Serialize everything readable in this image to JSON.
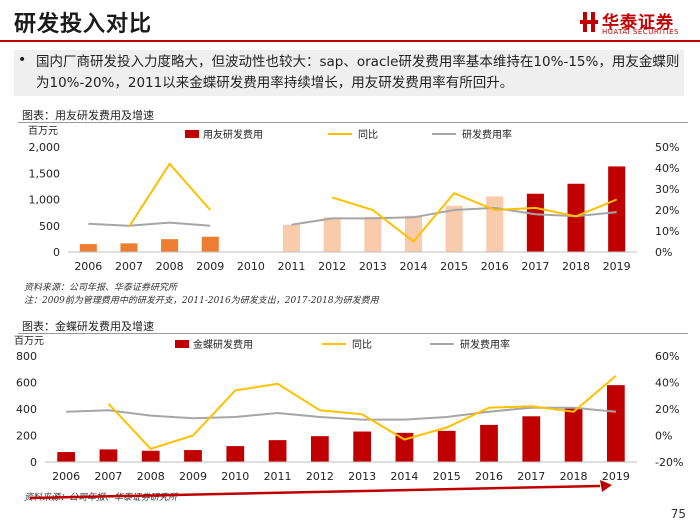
{
  "header": {
    "title": "研发投入对比",
    "logo_cn": "华泰证券",
    "logo_en": "HUATAI SECURITIES",
    "brand_color": "#c00000"
  },
  "summary": {
    "bullet": "•",
    "text": "国内厂商研发投入力度略大，但波动性也较大：sap、oracle研发费用率基本维持在10%-15%，用友金蝶则为10%-20%，2011以来金蝶研发费用率持续增长，用友研发费用率有所回升。"
  },
  "chart1": {
    "label": "图表：用友研发费用及增速",
    "source": "资料来源：公司年报、华泰证券研究所",
    "note": "注：2009前为管理费用中的研发开支，2011-2016为研发支出，2017-2018为研发费用"
  },
  "chart2": {
    "label": "图表：金蝶研发费用及增速",
    "source": "资料来源：公司年报、华泰证券研究所"
  },
  "page_number": "75",
  "chart_data": [
    {
      "type": "bar",
      "title": "用友研发费用及增速",
      "unit_label": "百万元",
      "categories": [
        "2006",
        "2007",
        "2008",
        "2009",
        "2010",
        "2011",
        "2012",
        "2013",
        "2014",
        "2015",
        "2016",
        "2017",
        "2018",
        "2019"
      ],
      "series": [
        {
          "name": "用友研发费用",
          "axis": "left",
          "kind": "bar",
          "values": [
            150,
            165,
            245,
            290,
            null,
            520,
            660,
            670,
            690,
            880,
            1060,
            1110,
            1300,
            1630
          ],
          "colors": [
            "#ed7d31",
            "#ed7d31",
            "#ed7d31",
            "#ed7d31",
            "#ed7d31",
            "#f8cbad",
            "#f8cbad",
            "#f8cbad",
            "#f8cbad",
            "#f8cbad",
            "#f8cbad",
            "#c00000",
            "#c00000",
            "#c00000"
          ]
        },
        {
          "name": "同比",
          "axis": "right",
          "kind": "line",
          "color": "#ffc000",
          "segments": [
            {
              "from": 1,
              "values": [
                12,
                42,
                20
              ]
            },
            {
              "from": 6,
              "values": [
                26,
                20,
                5,
                28,
                20,
                21,
                17,
                25
              ]
            }
          ]
        },
        {
          "name": "研发费用率",
          "axis": "right",
          "kind": "line",
          "color": "#a6a6a6",
          "segments": [
            {
              "from": 0,
              "values": [
                13.5,
                12.5,
                14,
                12.5
              ]
            },
            {
              "from": 5,
              "values": [
                13,
                16,
                16,
                16.5,
                20,
                21,
                18,
                17,
                19
              ]
            }
          ]
        }
      ],
      "ylim_left": [
        0,
        2000
      ],
      "yticks_left": [
        "0",
        "500",
        "1,000",
        "1,500",
        "2,000"
      ],
      "ylim_right": [
        0,
        50
      ],
      "yticks_right": [
        "0%",
        "10%",
        "20%",
        "30%",
        "40%",
        "50%"
      ]
    },
    {
      "type": "bar",
      "title": "金蝶研发费用及增速",
      "unit_label": "百万元",
      "categories": [
        "2006",
        "2007",
        "2008",
        "2009",
        "2010",
        "2011",
        "2012",
        "2013",
        "2014",
        "2015",
        "2016",
        "2017",
        "2018",
        "2019"
      ],
      "series": [
        {
          "name": "金蝶研发费用",
          "axis": "left",
          "kind": "bar",
          "color": "#c00000",
          "values": [
            75,
            95,
            85,
            90,
            120,
            165,
            195,
            230,
            220,
            235,
            280,
            345,
            410,
            580
          ]
        },
        {
          "name": "同比",
          "axis": "right",
          "kind": "line",
          "color": "#ffc000",
          "segments": [
            {
              "from": 1,
              "values": [
                24,
                -10,
                0,
                34,
                39,
                19,
                16,
                -3,
                6,
                21,
                22,
                18,
                45
              ]
            }
          ]
        },
        {
          "name": "研发费用率",
          "axis": "right",
          "kind": "line",
          "color": "#a6a6a6",
          "segments": [
            {
              "from": 0,
              "values": [
                18,
                19,
                15,
                13,
                14,
                17,
                14,
                12,
                12,
                14,
                18,
                21,
                21,
                18
              ]
            }
          ]
        }
      ],
      "ylim_left": [
        0,
        800
      ],
      "yticks_left": [
        "0",
        "200",
        "400",
        "600",
        "800"
      ],
      "ylim_right": [
        -20,
        60
      ],
      "yticks_right": [
        "-20%",
        "0%",
        "20%",
        "40%",
        "60%"
      ]
    }
  ]
}
